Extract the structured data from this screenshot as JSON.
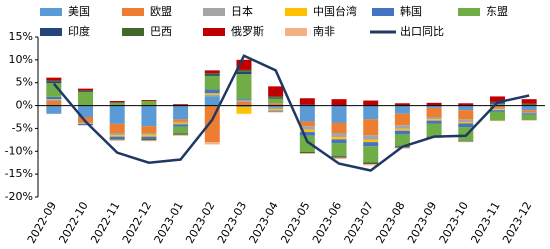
{
  "chart_data": {
    "type": "bar",
    "stacked": true,
    "categories": [
      "2022-09",
      "2022-10",
      "2022-11",
      "2022-12",
      "2023-01",
      "2023-02",
      "2023-03",
      "2023-04",
      "2023-05",
      "2023-06",
      "2023-07",
      "2023-08",
      "2023-09",
      "2023-10",
      "2023-11",
      "2023-12"
    ],
    "ylim": [
      -20,
      15
    ],
    "yticks": [
      {
        "value": -20,
        "label": "-20%"
      },
      {
        "value": -15,
        "label": "-15%"
      },
      {
        "value": -10,
        "label": "-10%"
      },
      {
        "value": -5,
        "label": "-5%"
      },
      {
        "value": 0,
        "label": "0%"
      },
      {
        "value": 5,
        "label": "5%"
      },
      {
        "value": 10,
        "label": "10%"
      },
      {
        "value": 15,
        "label": "15%"
      }
    ],
    "series": [
      {
        "name": "美国",
        "color": "#5b9bd5",
        "values": [
          -1.8,
          -2.5,
          -4.0,
          -4.5,
          -3.0,
          2.0,
          -0.3,
          -0.5,
          -3.5,
          -3.8,
          -3.0,
          -1.8,
          -0.5,
          -1.0,
          0.3,
          -1.0
        ]
      },
      {
        "name": "欧盟",
        "color": "#ed7d31",
        "values": [
          1.0,
          -1.2,
          -2.0,
          -1.5,
          -0.5,
          -8.0,
          0.8,
          0.5,
          -1.0,
          -2.2,
          -3.5,
          -2.5,
          -2.0,
          -2.0,
          -0.5,
          -0.5
        ]
      },
      {
        "name": "日本",
        "color": "#a5a5a5",
        "values": [
          0.3,
          -0.2,
          -0.5,
          -0.4,
          -0.3,
          0.4,
          0.4,
          -0.3,
          -0.8,
          -0.9,
          -1.0,
          -0.8,
          -0.5,
          -0.6,
          -0.3,
          -0.2
        ]
      },
      {
        "name": "中国台湾",
        "color": "#ffc000",
        "values": [
          0.1,
          -0.1,
          -0.3,
          -0.4,
          -0.3,
          0.3,
          -1.5,
          -0.3,
          -0.5,
          -0.5,
          -0.5,
          -0.4,
          -0.3,
          -0.3,
          -0.2,
          0.1
        ]
      },
      {
        "name": "韩国",
        "color": "#4472c4",
        "values": [
          0.5,
          -0.3,
          -0.6,
          -0.5,
          -0.5,
          0.8,
          0.2,
          -0.2,
          -0.8,
          -0.8,
          -0.9,
          -0.8,
          -0.7,
          -0.8,
          -0.3,
          -0.3
        ]
      },
      {
        "name": "东盟",
        "color": "#70ad47",
        "values": [
          3.0,
          3.0,
          0.6,
          1.0,
          -1.5,
          3.0,
          5.5,
          1.0,
          -3.5,
          -2.8,
          -3.5,
          -2.5,
          -2.8,
          -3.0,
          -2.0,
          -1.2
        ]
      },
      {
        "name": "印度",
        "color": "#264478",
        "values": [
          0.4,
          0.2,
          0.1,
          -0.1,
          -0.1,
          0.3,
          0.5,
          0.2,
          0.2,
          -0.1,
          0.1,
          -0.1,
          0.1,
          -0.1,
          0.2,
          0.1
        ]
      },
      {
        "name": "巴西",
        "color": "#43682b",
        "values": [
          0.2,
          0.1,
          -0.1,
          -0.2,
          -0.2,
          0.3,
          0.4,
          0.3,
          -0.3,
          -0.3,
          -0.4,
          -0.3,
          -0.2,
          -0.1,
          0.3,
          0.2
        ]
      },
      {
        "name": "俄罗斯",
        "color": "#c00000",
        "values": [
          0.6,
          0.4,
          0.3,
          0.2,
          0.3,
          0.6,
          2.2,
          2.2,
          1.4,
          1.4,
          1.0,
          0.5,
          0.5,
          0.5,
          1.2,
          1.0
        ]
      },
      {
        "name": "南非",
        "color": "#f4b183",
        "values": [
          0.1,
          0.1,
          -0.2,
          -0.2,
          -0.2,
          -0.5,
          0.1,
          -0.2,
          -0.2,
          -0.3,
          -0.3,
          -0.2,
          -0.1,
          -0.1,
          -0.1,
          -0.1
        ]
      },
      {
        "name": "出口同比",
        "type": "line",
        "color": "#1f3864",
        "values": [
          4.8,
          -3.5,
          -10.3,
          -12.5,
          -11.8,
          -3.1,
          10.9,
          7.7,
          -7.9,
          -12.7,
          -14.2,
          -9.0,
          -6.8,
          -6.6,
          0.7,
          2.2
        ]
      }
    ]
  }
}
